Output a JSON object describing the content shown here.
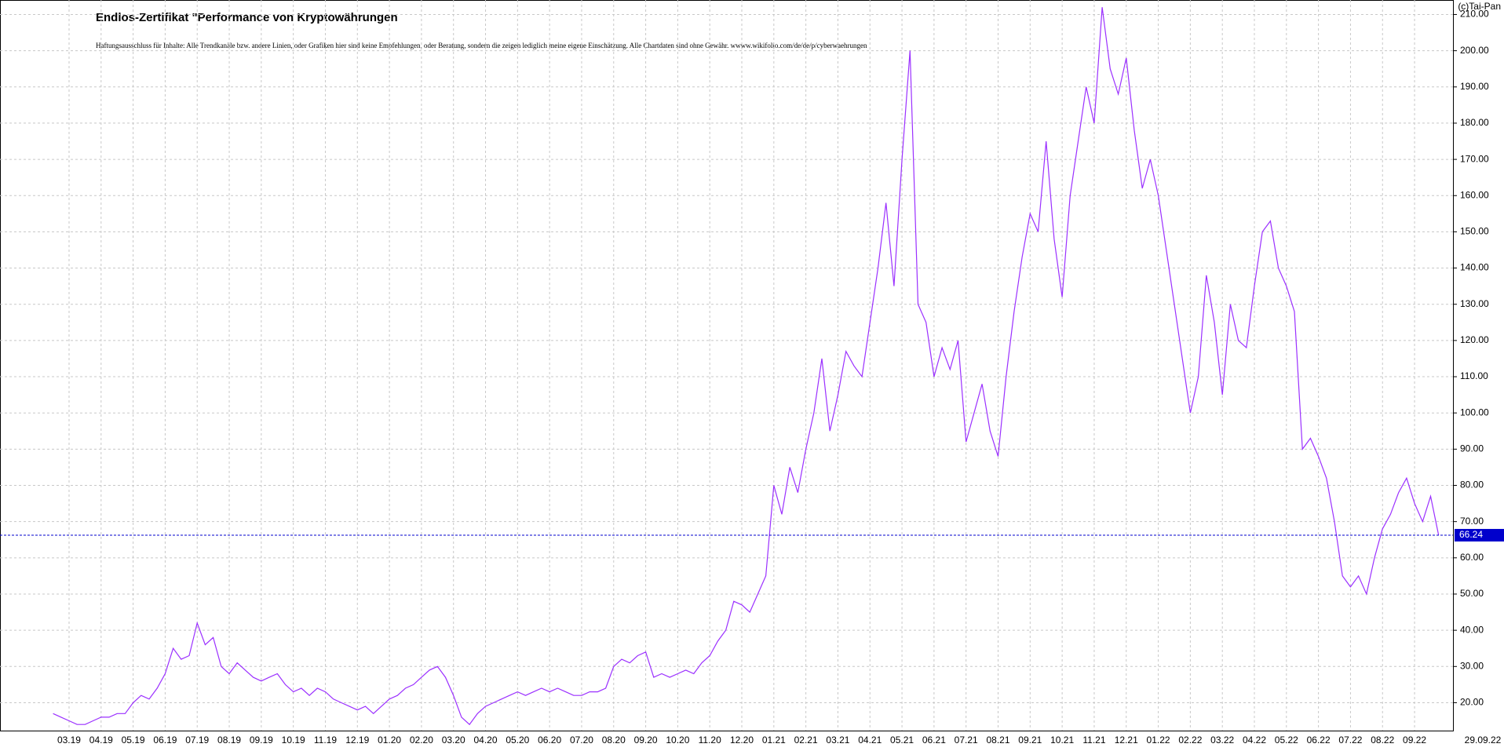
{
  "chart_data": {
    "type": "line",
    "title": "Endlos-Zertifikat \"Performance von Kryptowährungen",
    "subtitle": "Haftungsausschluss für Inhalte: Alle Trendkanäle bzw. andere Linien, oder Grafiken hier sind keine Empfehlungen, oder Beratung, sondern die zeigen lediglich meine eigene Einschätzung. Alle Chartdaten sind ohne Gewähr. wwww.wikifolio.com/de/de/p/cyberwaehrungen",
    "copyright": "(c)Tai-Pan",
    "categories": [
      null,
      null,
      "03.19",
      null,
      null,
      null,
      "04.19",
      null,
      null,
      null,
      "05.19",
      null,
      null,
      null,
      "06.19",
      null,
      null,
      null,
      "07.19",
      null,
      null,
      null,
      "08.19",
      null,
      null,
      null,
      "09.19",
      null,
      null,
      null,
      "10.19",
      null,
      null,
      null,
      "11.19",
      null,
      null,
      null,
      "12.19",
      null,
      null,
      null,
      "01.20",
      null,
      null,
      null,
      "02.20",
      null,
      null,
      null,
      "03.20",
      null,
      null,
      null,
      "04.20",
      null,
      null,
      null,
      "05.20",
      null,
      null,
      null,
      "06.20",
      null,
      null,
      null,
      "07.20",
      null,
      null,
      null,
      "08.20",
      null,
      null,
      null,
      "09.20",
      null,
      null,
      null,
      "10.20",
      null,
      null,
      null,
      "11.20",
      null,
      null,
      null,
      "12.20",
      null,
      null,
      null,
      "01.21",
      null,
      null,
      null,
      "02.21",
      null,
      null,
      null,
      "03.21",
      null,
      null,
      null,
      "04.21",
      null,
      null,
      null,
      "05.21",
      null,
      null,
      null,
      "06.21",
      null,
      null,
      null,
      "07.21",
      null,
      null,
      null,
      "08.21",
      null,
      null,
      null,
      "09.21",
      null,
      null,
      null,
      "10.21",
      null,
      null,
      null,
      "11.21",
      null,
      null,
      null,
      "12.21",
      null,
      null,
      null,
      "01.22",
      null,
      null,
      null,
      "02.22",
      null,
      null,
      null,
      "03.22",
      null,
      null,
      null,
      "04.22",
      null,
      null,
      null,
      "05.22",
      null,
      null,
      null,
      "06.22",
      null,
      null,
      null,
      "07.22",
      null,
      null,
      null,
      "08.22",
      null,
      null,
      null,
      "09.22",
      null,
      null,
      "29.09.22"
    ],
    "series": [
      {
        "color": "#9b30ff",
        "values": [
          17,
          16,
          15,
          14,
          14,
          15,
          16,
          16,
          17,
          17,
          20,
          22,
          21,
          24,
          28,
          35,
          32,
          33,
          42,
          36,
          38,
          30,
          28,
          31,
          29,
          27,
          26,
          27,
          28,
          25,
          23,
          24,
          22,
          24,
          23,
          21,
          20,
          19,
          18,
          19,
          17,
          19,
          21,
          22,
          24,
          25,
          27,
          29,
          30,
          27,
          22,
          16,
          14,
          17,
          19,
          20,
          21,
          22,
          23,
          22,
          23,
          24,
          23,
          24,
          23,
          22,
          22,
          23,
          23,
          24,
          30,
          32,
          31,
          33,
          34,
          27,
          28,
          27,
          28,
          29,
          28,
          31,
          33,
          37,
          40,
          48,
          47,
          45,
          50,
          55,
          80,
          72,
          85,
          78,
          90,
          100,
          115,
          95,
          105,
          117,
          113,
          110,
          125,
          140,
          158,
          135,
          170,
          200,
          130,
          125,
          110,
          118,
          112,
          120,
          92,
          100,
          108,
          95,
          88,
          110,
          128,
          143,
          155,
          150,
          175,
          148,
          132,
          160,
          175,
          190,
          180,
          212,
          195,
          188,
          198,
          178,
          162,
          170,
          160,
          145,
          130,
          115,
          100,
          110,
          138,
          125,
          105,
          130,
          120,
          118,
          135,
          150,
          153,
          140,
          135,
          128,
          90,
          93,
          88,
          82,
          70,
          55,
          52,
          55,
          50,
          60,
          68,
          72,
          78,
          82,
          75,
          70,
          77,
          66.24
        ]
      }
    ],
    "ylim": [
      12.3,
      214
    ],
    "yticks": [
      {
        "value": 20,
        "label": "20.00"
      },
      {
        "value": 30,
        "label": "30.00"
      },
      {
        "value": 40,
        "label": "40.00"
      },
      {
        "value": 50,
        "label": "50.00"
      },
      {
        "value": 60,
        "label": "60.00"
      },
      {
        "value": 70,
        "label": "70.00"
      },
      {
        "value": 80,
        "label": "80.00"
      },
      {
        "value": 90,
        "label": "90.00"
      },
      {
        "value": 100,
        "label": "100.00"
      },
      {
        "value": 110,
        "label": "110.00"
      },
      {
        "value": 120,
        "label": "120.00"
      },
      {
        "value": 130,
        "label": "130.00"
      },
      {
        "value": 140,
        "label": "140.00"
      },
      {
        "value": 150,
        "label": "150.00"
      },
      {
        "value": 160,
        "label": "160.00"
      },
      {
        "value": 170,
        "label": "170.00"
      },
      {
        "value": 180,
        "label": "180.00"
      },
      {
        "value": 190,
        "label": "190.00"
      },
      {
        "value": 200,
        "label": "200.00"
      },
      {
        "value": 210,
        "label": "210.00"
      }
    ],
    "grid": true
  }
}
